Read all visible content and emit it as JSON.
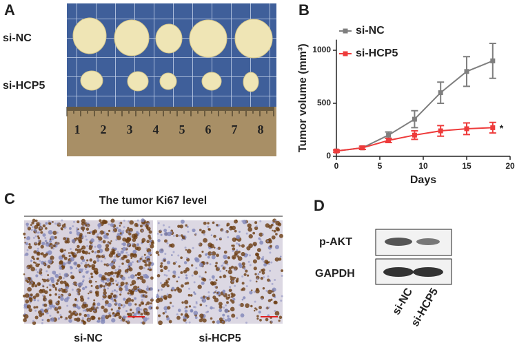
{
  "panel_a": {
    "label": "A",
    "row_labels": [
      "si-NC",
      "si-HCP5"
    ],
    "ruler_numbers": [
      "1",
      "2",
      "3",
      "4",
      "5",
      "6",
      "7",
      "8"
    ]
  },
  "chart_data": {
    "type": "line",
    "panel_label": "B",
    "x_label": "Days",
    "y_label": "Tumor volume (mm³)",
    "x": [
      0,
      3,
      6,
      9,
      12,
      15,
      18
    ],
    "series": [
      {
        "name": "si-NC",
        "color": "#7f7f7f",
        "values": [
          50,
          80,
          200,
          350,
          600,
          800,
          900
        ],
        "errors": [
          10,
          15,
          30,
          80,
          100,
          140,
          165
        ]
      },
      {
        "name": "si-HCP5",
        "color": "#ee3b3b",
        "values": [
          50,
          80,
          150,
          200,
          240,
          260,
          270
        ],
        "errors": [
          10,
          15,
          20,
          40,
          50,
          55,
          50
        ]
      }
    ],
    "xlim": [
      0,
      20
    ],
    "xticks": [
      0,
      5,
      10,
      15,
      20
    ],
    "ylim": [
      0,
      1100
    ],
    "yticks": [
      0,
      500,
      1000
    ],
    "legend": "top-left",
    "annotation": "*"
  },
  "panel_c": {
    "label": "C",
    "title": "The tumor Ki67 level",
    "image_labels": [
      "si-NC",
      "si-HCP5"
    ]
  },
  "panel_d": {
    "label": "D",
    "row_labels": [
      "p-AKT",
      "GAPDH"
    ],
    "lane_labels": [
      "si-NC",
      "si-HCP5"
    ]
  }
}
